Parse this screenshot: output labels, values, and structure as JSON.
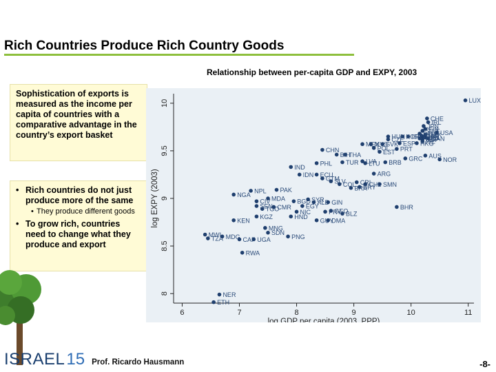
{
  "slide": {
    "title": "Rich Countries Produce Rich Country Goods",
    "box1_text": "Sophistication of exports is measured as the income per capita of countries with a comparative advantage in the country’s export basket",
    "bullet1": "Rich countries do not just produce more of the same",
    "sub1": "They produce different goods",
    "bullet2": "To grow rich, countries need to change what they produce and export",
    "brand": "ISRAEL",
    "brand_num": "15",
    "presenter": "Prof. Ricardo Hausmann",
    "page_number": "-8-",
    "colors": {
      "rule": "#8dbf3c",
      "box_bg": "#fffbd6",
      "plot_bg": "#eaf0f5",
      "point": "#1f3f6e",
      "brand": "#1a3f6f"
    }
  },
  "chart_data": {
    "type": "scatter",
    "title": "Relationship between per-capita GDP and EXPY, 2003",
    "xlabel": "log GDP per capita (2003, PPP)",
    "ylabel": "log EXPY (2003)",
    "xlim": [
      5.85,
      11.1
    ],
    "ylim": [
      7.9,
      10.1
    ],
    "xticks": [
      "6",
      "7",
      "8",
      "9",
      "10",
      "11"
    ],
    "yticks": [
      "8",
      "8.5",
      "9",
      "9.5",
      "10"
    ],
    "xtick_values": [
      6,
      7,
      8,
      9,
      10,
      11
    ],
    "ytick_values": [
      8,
      8.5,
      9,
      9.5,
      10
    ],
    "grid": false,
    "points": [
      {
        "label": "LUX",
        "x": 10.95,
        "y": 10.03
      },
      {
        "label": "CHE",
        "x": 10.28,
        "y": 9.84
      },
      {
        "label": "IRL",
        "x": 10.3,
        "y": 9.8
      },
      {
        "label": "JPN",
        "x": 10.22,
        "y": 9.76
      },
      {
        "label": "FIN",
        "x": 10.25,
        "y": 9.73
      },
      {
        "label": "SWE",
        "x": 10.2,
        "y": 9.71
      },
      {
        "label": "USA",
        "x": 10.45,
        "y": 9.69
      },
      {
        "label": "DNK",
        "x": 10.25,
        "y": 9.67
      },
      {
        "label": "GBR",
        "x": 10.2,
        "y": 9.65
      },
      {
        "label": "DEU",
        "x": 10.15,
        "y": 9.68
      },
      {
        "label": "SGP",
        "x": 10.2,
        "y": 9.62
      },
      {
        "label": "ISL",
        "x": 10.2,
        "y": 9.6
      },
      {
        "label": "CAN",
        "x": 10.3,
        "y": 9.63
      },
      {
        "label": "FRA",
        "x": 10.18,
        "y": 9.66
      },
      {
        "label": "BEL",
        "x": 10.25,
        "y": 9.64
      },
      {
        "label": "NLD",
        "x": 10.15,
        "y": 9.63
      },
      {
        "label": "ISR",
        "x": 9.95,
        "y": 9.65
      },
      {
        "label": "KOR",
        "x": 9.85,
        "y": 9.65
      },
      {
        "label": "HUN",
        "x": 9.6,
        "y": 9.65
      },
      {
        "label": "MEX",
        "x": 9.15,
        "y": 9.57
      },
      {
        "label": "SVK",
        "x": 9.5,
        "y": 9.57
      },
      {
        "label": "CZE",
        "x": 9.6,
        "y": 9.62
      },
      {
        "label": "MYS",
        "x": 9.3,
        "y": 9.57
      },
      {
        "label": "POL",
        "x": 9.35,
        "y": 9.53
      },
      {
        "label": "ESP",
        "x": 9.8,
        "y": 9.58
      },
      {
        "label": "HKG",
        "x": 10.1,
        "y": 9.58
      },
      {
        "label": "EST",
        "x": 9.45,
        "y": 9.49
      },
      {
        "label": "PRT",
        "x": 9.75,
        "y": 9.52
      },
      {
        "label": "CHN",
        "x": 8.45,
        "y": 9.51
      },
      {
        "label": "THA",
        "x": 8.85,
        "y": 9.46
      },
      {
        "label": "BIH",
        "x": 8.7,
        "y": 9.46
      },
      {
        "label": "GRC",
        "x": 9.9,
        "y": 9.42
      },
      {
        "label": "AUS",
        "x": 10.25,
        "y": 9.45
      },
      {
        "label": "NOR",
        "x": 10.5,
        "y": 9.41
      },
      {
        "label": "IND",
        "x": 7.9,
        "y": 9.33
      },
      {
        "label": "PHL",
        "x": 8.35,
        "y": 9.37
      },
      {
        "label": "TUR",
        "x": 8.8,
        "y": 9.38
      },
      {
        "label": "LTU",
        "x": 9.2,
        "y": 9.37
      },
      {
        "label": "LVA",
        "x": 9.15,
        "y": 9.39
      },
      {
        "label": "BRB",
        "x": 9.55,
        "y": 9.38
      },
      {
        "label": "IDN",
        "x": 8.05,
        "y": 9.25
      },
      {
        "label": "ECU",
        "x": 8.35,
        "y": 9.25
      },
      {
        "label": "ARG",
        "x": 9.35,
        "y": 9.26
      },
      {
        "label": "SLV",
        "x": 8.6,
        "y": 9.18
      },
      {
        "label": "GTM",
        "x": 8.45,
        "y": 9.21
      },
      {
        "label": "NPL",
        "x": 7.2,
        "y": 9.08
      },
      {
        "label": "PAK",
        "x": 7.65,
        "y": 9.09
      },
      {
        "label": "COL",
        "x": 8.75,
        "y": 9.15
      },
      {
        "label": "BRA",
        "x": 8.95,
        "y": 9.11
      },
      {
        "label": "CRI",
        "x": 9.05,
        "y": 9.17
      },
      {
        "label": "SMN",
        "x": 9.45,
        "y": 9.15
      },
      {
        "label": "URY",
        "x": 9.1,
        "y": 9.12
      },
      {
        "label": "CHL",
        "x": 9.2,
        "y": 9.15
      },
      {
        "label": "NGA",
        "x": 6.9,
        "y": 9.04
      },
      {
        "label": "MDA",
        "x": 7.5,
        "y": 9.0
      },
      {
        "label": "CIV",
        "x": 7.3,
        "y": 8.97
      },
      {
        "label": "SEN",
        "x": 7.3,
        "y": 8.92
      },
      {
        "label": "TGO",
        "x": 7.4,
        "y": 8.89
      },
      {
        "label": "CMR",
        "x": 7.6,
        "y": 8.91
      },
      {
        "label": "BGD",
        "x": 7.95,
        "y": 8.97
      },
      {
        "label": "SYR",
        "x": 8.2,
        "y": 8.99
      },
      {
        "label": "ALB",
        "x": 8.3,
        "y": 8.96
      },
      {
        "label": "GIN",
        "x": 8.55,
        "y": 8.96
      },
      {
        "label": "EGY",
        "x": 8.1,
        "y": 8.92
      },
      {
        "label": "PRY",
        "x": 8.5,
        "y": 8.86
      },
      {
        "label": "GEO",
        "x": 8.6,
        "y": 8.87
      },
      {
        "label": "BLZ",
        "x": 8.8,
        "y": 8.84
      },
      {
        "label": "NIC",
        "x": 8.0,
        "y": 8.86
      },
      {
        "label": "HND",
        "x": 7.9,
        "y": 8.81
      },
      {
        "label": "KGZ",
        "x": 7.3,
        "y": 8.81
      },
      {
        "label": "KEN",
        "x": 6.9,
        "y": 8.77
      },
      {
        "label": "GUY",
        "x": 8.35,
        "y": 8.77
      },
      {
        "label": "DMA",
        "x": 8.55,
        "y": 8.77
      },
      {
        "label": "BHR",
        "x": 9.75,
        "y": 8.91
      },
      {
        "label": "MNG",
        "x": 7.45,
        "y": 8.69
      },
      {
        "label": "SDN",
        "x": 7.5,
        "y": 8.64
      },
      {
        "label": "PNG",
        "x": 7.85,
        "y": 8.6
      },
      {
        "label": "MWI",
        "x": 6.4,
        "y": 8.62
      },
      {
        "label": "TZA",
        "x": 6.45,
        "y": 8.58
      },
      {
        "label": "MDG",
        "x": 6.7,
        "y": 8.6
      },
      {
        "label": "CAF",
        "x": 7.0,
        "y": 8.57
      },
      {
        "label": "UGA",
        "x": 7.25,
        "y": 8.57
      },
      {
        "label": "RWA",
        "x": 7.05,
        "y": 8.43
      },
      {
        "label": "NER",
        "x": 6.65,
        "y": 7.99
      },
      {
        "label": "ETH",
        "x": 6.55,
        "y": 7.91
      }
    ]
  }
}
